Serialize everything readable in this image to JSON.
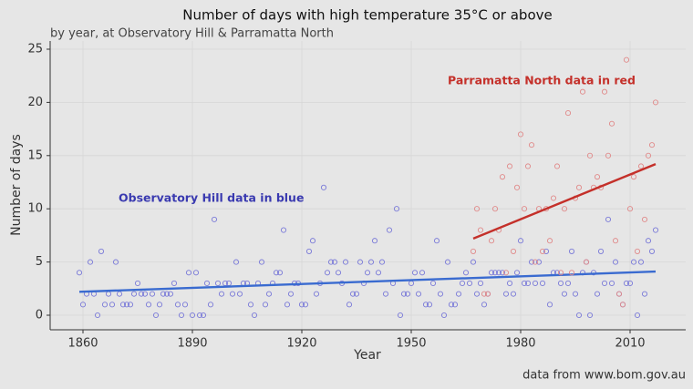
{
  "chart_data": {
    "type": "scatter",
    "title": "Number of days with high temperature 35°C or above",
    "subtitle": "by year, at Observatory Hill & Parramatta North",
    "xlabel": "Year",
    "ylabel": "Number of days",
    "caption": "data from www.bom.gov.au",
    "annotations": [
      "Observatory Hill data in blue",
      "Parramatta North data in red"
    ],
    "xlim": [
      1851,
      2025.25
    ],
    "xticks": [
      1860,
      1890,
      1920,
      1950,
      1980,
      2010
    ],
    "ylim": [
      -1.37,
      25.77
    ],
    "yticks": [
      0,
      5,
      10,
      15,
      20,
      25
    ],
    "grid": true,
    "series": [
      {
        "name": "Observatory Hill",
        "color": "#7a7ad8",
        "trend_color": "#3a6bd0",
        "x": [
          1859,
          1860,
          1861,
          1862,
          1863,
          1864,
          1865,
          1866,
          1867,
          1868,
          1869,
          1870,
          1871,
          1872,
          1873,
          1874,
          1875,
          1876,
          1877,
          1878,
          1879,
          1880,
          1881,
          1882,
          1883,
          1884,
          1885,
          1886,
          1887,
          1888,
          1889,
          1890,
          1891,
          1892,
          1893,
          1894,
          1895,
          1896,
          1897,
          1898,
          1899,
          1900,
          1901,
          1902,
          1903,
          1904,
          1905,
          1906,
          1907,
          1908,
          1909,
          1910,
          1911,
          1912,
          1913,
          1914,
          1915,
          1916,
          1917,
          1918,
          1919,
          1920,
          1921,
          1922,
          1923,
          1924,
          1925,
          1926,
          1927,
          1928,
          1929,
          1930,
          1931,
          1932,
          1933,
          1934,
          1935,
          1936,
          1937,
          1938,
          1939,
          1940,
          1941,
          1942,
          1943,
          1944,
          1945,
          1946,
          1947,
          1948,
          1949,
          1950,
          1951,
          1952,
          1953,
          1954,
          1955,
          1956,
          1957,
          1958,
          1959,
          1960,
          1961,
          1962,
          1963,
          1964,
          1965,
          1966,
          1967,
          1968,
          1969,
          1970,
          1971,
          1972,
          1973,
          1974,
          1975,
          1976,
          1977,
          1978,
          1979,
          1980,
          1981,
          1982,
          1983,
          1984,
          1985,
          1986,
          1987,
          1988,
          1989,
          1990,
          1991,
          1992,
          1993,
          1994,
          1995,
          1996,
          1997,
          1998,
          1999,
          2000,
          2001,
          2002,
          2003,
          2004,
          2005,
          2006,
          2007,
          2008,
          2009,
          2010,
          2011,
          2012,
          2013,
          2014,
          2015,
          2016,
          2017
        ],
        "values": [
          4,
          1,
          2,
          5,
          2,
          0,
          6,
          1,
          2,
          1,
          5,
          2,
          1,
          1,
          1,
          2,
          3,
          2,
          2,
          1,
          2,
          0,
          1,
          2,
          2,
          2,
          3,
          1,
          0,
          1,
          4,
          0,
          4,
          0,
          0,
          3,
          1,
          9,
          3,
          2,
          3,
          3,
          2,
          5,
          2,
          3,
          3,
          1,
          0,
          3,
          5,
          1,
          2,
          3,
          4,
          4,
          8,
          1,
          2,
          3,
          3,
          1,
          1,
          6,
          7,
          2,
          3,
          12,
          4,
          5,
          5,
          4,
          3,
          5,
          1,
          2,
          2,
          5,
          3,
          4,
          5,
          7,
          4,
          5,
          2,
          8,
          3,
          10,
          0,
          2,
          2,
          3,
          4,
          2,
          4,
          1,
          1,
          3,
          7,
          2,
          0,
          5,
          1,
          1,
          2,
          3,
          4,
          3,
          5,
          2,
          3,
          1,
          2,
          4,
          4,
          4,
          4,
          2,
          3,
          2,
          4,
          7,
          3,
          3,
          5,
          3,
          5,
          3,
          6,
          1,
          4,
          4,
          3,
          2,
          3,
          6,
          2,
          0,
          4,
          5,
          0,
          4,
          2,
          6,
          3,
          9,
          3,
          5,
          2,
          1,
          3,
          3,
          5,
          0,
          5,
          2,
          7,
          6,
          8
        ],
        "trend": {
          "x": [
            1859,
            2017
          ],
          "values": [
            2.2,
            4.1
          ]
        }
      },
      {
        "name": "Parramatta North",
        "color": "#e08a8a",
        "trend_color": "#c4302a",
        "x": [
          1967,
          1968,
          1969,
          1970,
          1971,
          1972,
          1973,
          1974,
          1975,
          1976,
          1977,
          1978,
          1979,
          1980,
          1981,
          1982,
          1983,
          1984,
          1985,
          1986,
          1987,
          1988,
          1989,
          1990,
          1991,
          1992,
          1993,
          1994,
          1995,
          1996,
          1997,
          1998,
          1999,
          2000,
          2001,
          2002,
          2003,
          2004,
          2005,
          2006,
          2007,
          2008,
          2009,
          2010,
          2011,
          2012,
          2013,
          2014,
          2015,
          2016,
          2017
        ],
        "values": [
          6,
          10,
          8,
          2,
          2,
          7,
          10,
          8,
          13,
          4,
          14,
          6,
          12,
          17,
          10,
          14,
          16,
          5,
          10,
          6,
          10,
          7,
          11,
          14,
          4,
          10,
          19,
          4,
          11,
          12,
          21,
          5,
          15,
          12,
          13,
          12,
          21,
          15,
          18,
          7,
          2,
          1,
          24,
          10,
          13,
          6,
          14,
          9,
          15,
          16,
          20
        ],
        "trend": {
          "x": [
            1967,
            2017
          ],
          "values": [
            7.2,
            14.2
          ]
        }
      }
    ]
  }
}
